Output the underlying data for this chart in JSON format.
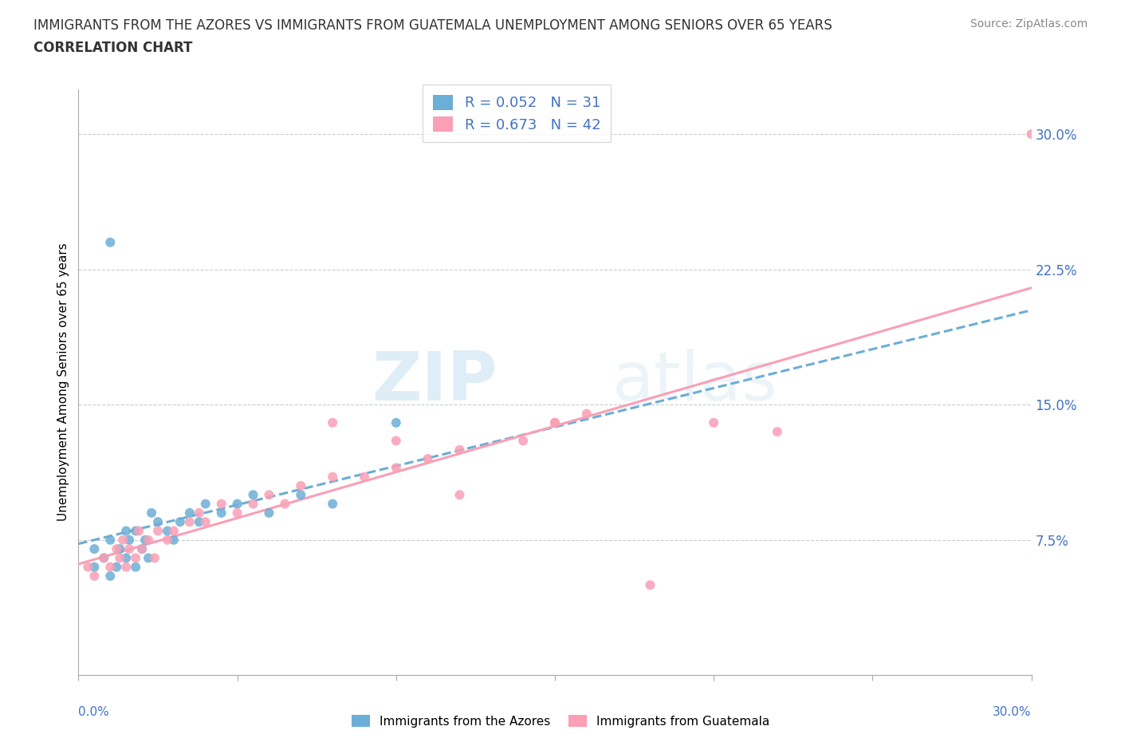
{
  "title_line1": "IMMIGRANTS FROM THE AZORES VS IMMIGRANTS FROM GUATEMALA UNEMPLOYMENT AMONG SENIORS OVER 65 YEARS",
  "title_line2": "CORRELATION CHART",
  "source_text": "Source: ZipAtlas.com",
  "ylabel": "Unemployment Among Seniors over 65 years",
  "ytick_labels": [
    "7.5%",
    "15.0%",
    "22.5%",
    "30.0%"
  ],
  "ytick_values": [
    0.075,
    0.15,
    0.225,
    0.3
  ],
  "xlim": [
    0.0,
    0.3
  ],
  "ylim": [
    0.0,
    0.325
  ],
  "legend_label1": "Immigrants from the Azores",
  "legend_label2": "Immigrants from Guatemala",
  "R1": "0.052",
  "N1": "31",
  "R2": "0.673",
  "N2": "42",
  "color_azores": "#6baed6",
  "color_guatemala": "#fa9fb5",
  "watermark_zip": "ZIP",
  "watermark_atlas": "atlas",
  "azores_x": [
    0.005,
    0.005,
    0.008,
    0.01,
    0.01,
    0.012,
    0.013,
    0.015,
    0.015,
    0.016,
    0.018,
    0.018,
    0.02,
    0.021,
    0.022,
    0.023,
    0.025,
    0.028,
    0.03,
    0.032,
    0.035,
    0.038,
    0.04,
    0.045,
    0.05,
    0.055,
    0.06,
    0.07,
    0.08,
    0.1,
    0.01
  ],
  "azores_y": [
    0.06,
    0.07,
    0.065,
    0.055,
    0.075,
    0.06,
    0.07,
    0.065,
    0.08,
    0.075,
    0.06,
    0.08,
    0.07,
    0.075,
    0.065,
    0.09,
    0.085,
    0.08,
    0.075,
    0.085,
    0.09,
    0.085,
    0.095,
    0.09,
    0.095,
    0.1,
    0.09,
    0.1,
    0.095,
    0.14,
    0.24
  ],
  "guatemala_x": [
    0.003,
    0.005,
    0.008,
    0.01,
    0.012,
    0.013,
    0.014,
    0.015,
    0.016,
    0.018,
    0.019,
    0.02,
    0.022,
    0.024,
    0.025,
    0.028,
    0.03,
    0.035,
    0.038,
    0.04,
    0.045,
    0.05,
    0.055,
    0.06,
    0.065,
    0.07,
    0.08,
    0.09,
    0.1,
    0.11,
    0.12,
    0.14,
    0.15,
    0.16,
    0.18,
    0.2,
    0.22,
    0.15,
    0.1,
    0.12,
    0.08,
    0.3
  ],
  "guatemala_y": [
    0.06,
    0.055,
    0.065,
    0.06,
    0.07,
    0.065,
    0.075,
    0.06,
    0.07,
    0.065,
    0.08,
    0.07,
    0.075,
    0.065,
    0.08,
    0.075,
    0.08,
    0.085,
    0.09,
    0.085,
    0.095,
    0.09,
    0.095,
    0.1,
    0.095,
    0.105,
    0.11,
    0.11,
    0.115,
    0.12,
    0.125,
    0.13,
    0.14,
    0.145,
    0.05,
    0.14,
    0.135,
    0.14,
    0.13,
    0.1,
    0.14,
    0.3
  ]
}
